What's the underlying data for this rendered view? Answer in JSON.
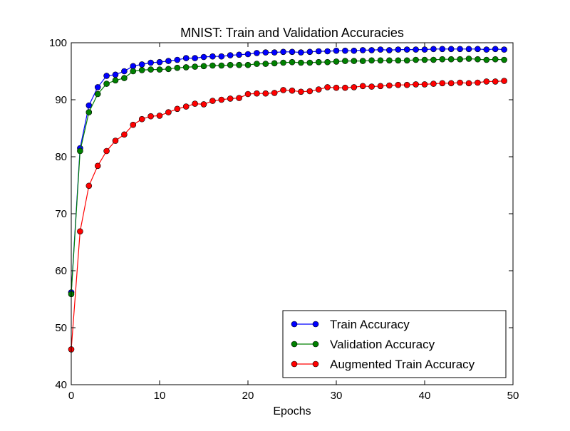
{
  "chart_data": {
    "type": "line",
    "title": "MNIST: Train and Validation Accuracies",
    "xlabel": "Epochs",
    "ylabel": "",
    "xlim": [
      0,
      50
    ],
    "ylim": [
      40,
      100
    ],
    "xticks": [
      0,
      10,
      20,
      30,
      40,
      50
    ],
    "yticks": [
      40,
      50,
      60,
      70,
      80,
      90,
      100
    ],
    "grid": false,
    "legend_position": "lower-right",
    "x": [
      0,
      1,
      2,
      3,
      4,
      5,
      6,
      7,
      8,
      9,
      10,
      11,
      12,
      13,
      14,
      15,
      16,
      17,
      18,
      19,
      20,
      21,
      22,
      23,
      24,
      25,
      26,
      27,
      28,
      29,
      30,
      31,
      32,
      33,
      34,
      35,
      36,
      37,
      38,
      39,
      40,
      41,
      42,
      43,
      44,
      45,
      46,
      47,
      48,
      49
    ],
    "series": [
      {
        "name": "Train Accuracy",
        "color": "#0000ff",
        "values": [
          56.2,
          81.5,
          89.0,
          92.2,
          94.2,
          94.4,
          95.0,
          95.9,
          96.2,
          96.5,
          96.6,
          96.8,
          97.0,
          97.3,
          97.3,
          97.5,
          97.6,
          97.6,
          97.8,
          97.9,
          98.0,
          98.2,
          98.3,
          98.3,
          98.4,
          98.4,
          98.3,
          98.4,
          98.5,
          98.5,
          98.6,
          98.6,
          98.6,
          98.7,
          98.7,
          98.8,
          98.7,
          98.8,
          98.8,
          98.8,
          98.8,
          98.9,
          98.9,
          98.9,
          98.9,
          98.9,
          98.9,
          98.8,
          98.9,
          98.8
        ]
      },
      {
        "name": "Validation Accuracy",
        "color": "#008000",
        "values": [
          55.9,
          81.0,
          87.8,
          91.0,
          92.8,
          93.4,
          93.8,
          95.0,
          95.2,
          95.3,
          95.3,
          95.4,
          95.6,
          95.7,
          95.8,
          95.9,
          96.0,
          96.0,
          96.1,
          96.1,
          96.1,
          96.3,
          96.3,
          96.4,
          96.5,
          96.6,
          96.5,
          96.5,
          96.6,
          96.6,
          96.7,
          96.8,
          96.8,
          96.8,
          96.9,
          96.9,
          96.9,
          96.9,
          96.9,
          97.0,
          97.0,
          97.0,
          97.1,
          97.1,
          97.1,
          97.2,
          97.1,
          97.0,
          97.1,
          97.0
        ]
      },
      {
        "name": "Augmented Train Accuracy",
        "color": "#ff0000",
        "values": [
          46.2,
          66.9,
          74.9,
          78.4,
          81.0,
          82.8,
          83.9,
          85.6,
          86.6,
          87.1,
          87.2,
          87.8,
          88.4,
          88.8,
          89.3,
          89.2,
          89.8,
          90.0,
          90.2,
          90.3,
          91.0,
          91.1,
          91.1,
          91.2,
          91.7,
          91.6,
          91.4,
          91.5,
          91.8,
          92.2,
          92.1,
          92.1,
          92.2,
          92.4,
          92.3,
          92.4,
          92.5,
          92.6,
          92.6,
          92.7,
          92.7,
          92.8,
          92.9,
          92.9,
          93.0,
          92.9,
          93.0,
          93.2,
          93.2,
          93.3
        ]
      }
    ]
  }
}
